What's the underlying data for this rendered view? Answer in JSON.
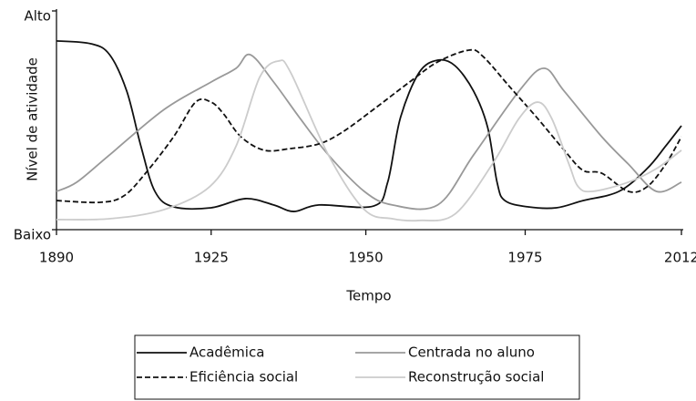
{
  "chart_data": {
    "type": "line",
    "xlabel": "Tempo",
    "ylabel": "Nível de atividade",
    "xlim": [
      0,
      4
    ],
    "xticks": [
      {
        "value": 0,
        "label": "1890"
      },
      {
        "value": 0.99,
        "label": "1925"
      },
      {
        "value": 1.98,
        "label": "1950"
      },
      {
        "value": 3.0,
        "label": "1975"
      },
      {
        "value": 4,
        "label": "2012"
      }
    ],
    "ylim": [
      0,
      10
    ],
    "yticks": [
      {
        "value": 0,
        "label": "Baixo"
      },
      {
        "value": 10,
        "label": "Alto"
      }
    ],
    "series": [
      {
        "name": "Acadêmica",
        "color": "#111111",
        "dash": false,
        "x": [
          0,
          0.22,
          0.34,
          0.45,
          0.54,
          0.63,
          0.75,
          0.99,
          1.21,
          1.39,
          1.52,
          1.68,
          2.03,
          2.12,
          2.2,
          2.32,
          2.44,
          2.55,
          2.67,
          2.76,
          2.82,
          2.87,
          3.02,
          3.2,
          3.37,
          3.6,
          3.78,
          3.9,
          4
        ],
        "values": [
          8.63,
          8.5,
          8.0,
          6.33,
          3.83,
          1.75,
          1.04,
          1.0,
          1.42,
          1.13,
          0.83,
          1.13,
          1.08,
          2.17,
          5.08,
          7.17,
          7.75,
          7.5,
          6.33,
          4.67,
          2.17,
          1.33,
          1.04,
          1.0,
          1.33,
          1.75,
          2.79,
          3.83,
          4.75
        ]
      },
      {
        "name": "Centrada no aluno",
        "color": "#999999",
        "dash": false,
        "x": [
          0,
          0.13,
          0.34,
          0.69,
          0.99,
          1.15,
          1.24,
          1.39,
          1.56,
          1.74,
          1.97,
          2.15,
          2.44,
          2.67,
          2.96,
          3.12,
          3.25,
          3.49,
          3.66,
          3.84,
          4
        ],
        "values": [
          1.75,
          2.17,
          3.42,
          5.5,
          6.75,
          7.38,
          8.0,
          6.75,
          5.08,
          3.42,
          1.75,
          1.13,
          1.13,
          3.42,
          6.33,
          7.38,
          6.33,
          4.25,
          3.0,
          1.75,
          2.17
        ]
      },
      {
        "name": "Eficiência social",
        "color": "#111111",
        "dash": true,
        "x": [
          0,
          0.28,
          0.43,
          0.57,
          0.75,
          0.89,
          0.99,
          1.07,
          1.18,
          1.33,
          1.5,
          1.68,
          1.83,
          2.03,
          2.26,
          2.44,
          2.64,
          2.73,
          2.9,
          3.08,
          3.25,
          3.37,
          3.49,
          3.66,
          3.78,
          3.9,
          4
        ],
        "values": [
          1.33,
          1.25,
          1.54,
          2.58,
          4.25,
          5.83,
          5.83,
          5.29,
          4.25,
          3.63,
          3.71,
          3.92,
          4.46,
          5.5,
          6.75,
          7.67,
          8.21,
          7.92,
          6.54,
          5.08,
          3.63,
          2.71,
          2.58,
          1.75,
          1.96,
          3.0,
          4.25
        ]
      },
      {
        "name": "Reconstrução social",
        "color": "#cccccc",
        "dash": false,
        "x": [
          0,
          0.34,
          0.69,
          0.98,
          1.15,
          1.3,
          1.42,
          1.5,
          1.74,
          1.97,
          2.15,
          2.32,
          2.55,
          2.79,
          2.96,
          3.08,
          3.17,
          3.28,
          3.34,
          3.43,
          3.66,
          3.84,
          4
        ],
        "values": [
          0.46,
          0.5,
          0.92,
          1.96,
          3.83,
          6.96,
          7.71,
          7.17,
          3.42,
          0.92,
          0.5,
          0.42,
          0.71,
          3.0,
          5.08,
          5.83,
          5.08,
          3.0,
          1.96,
          1.75,
          2.17,
          2.79,
          3.63
        ]
      }
    ]
  }
}
